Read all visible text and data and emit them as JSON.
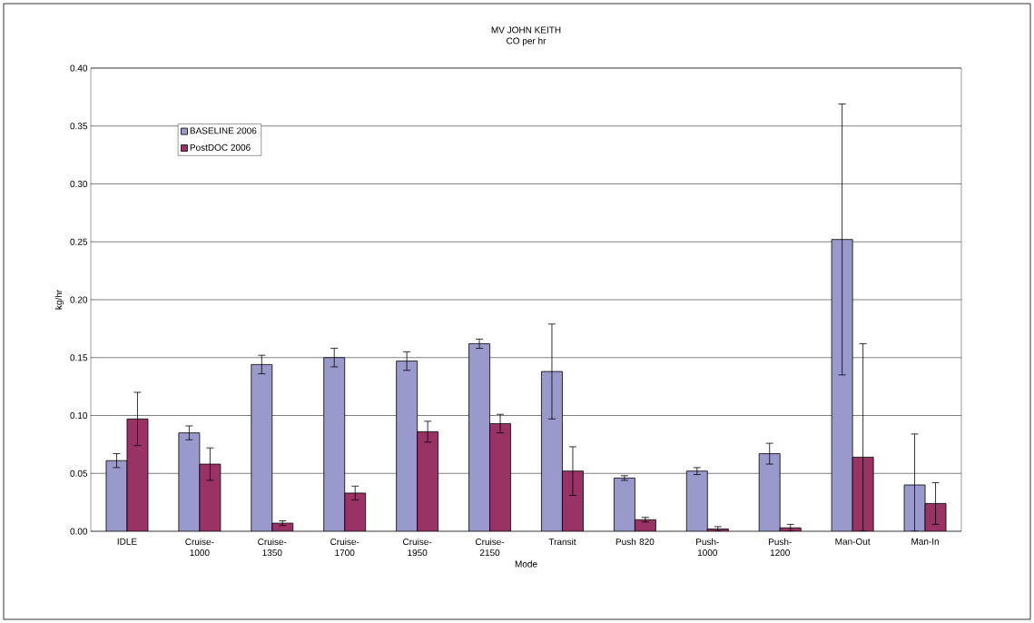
{
  "chart_data": {
    "type": "bar",
    "title": "MV JOHN KEITH",
    "subtitle": "CO per hr",
    "xlabel": "Mode",
    "ylabel": "kg/hr",
    "categories": [
      "IDLE",
      "Cruise-1000",
      "Cruise-1350",
      "Cruise-1700",
      "Cruise-1950",
      "Cruise-2150",
      "Transit",
      "Push 820",
      "Push-1000",
      "Push-1200",
      "Man-Out",
      "Man-In"
    ],
    "series": [
      {
        "name": "BASELINE 2006",
        "color": "#9999cc",
        "values": [
          0.061,
          0.085,
          0.144,
          0.15,
          0.147,
          0.162,
          0.138,
          0.046,
          0.052,
          0.067,
          0.252,
          0.04
        ],
        "errors": [
          0.006,
          0.006,
          0.008,
          0.008,
          0.008,
          0.004,
          0.041,
          0.002,
          0.003,
          0.009,
          0.117,
          [
            0.0,
            0.084
          ]
        ]
      },
      {
        "name": "PostDOC 2006",
        "color": "#993366",
        "values": [
          0.097,
          0.058,
          0.007,
          0.033,
          0.086,
          0.093,
          0.052,
          0.01,
          0.002,
          0.003,
          0.064,
          0.024
        ],
        "errors": [
          0.023,
          0.014,
          0.002,
          0.006,
          0.009,
          0.008,
          0.021,
          0.002,
          0.002,
          0.003,
          [
            0.0,
            0.162
          ],
          0.018
        ]
      }
    ],
    "ylim": [
      0,
      0.4
    ],
    "yticks": [
      {
        "value": 0,
        "label": "0.00"
      },
      0.05,
      {
        "value": 0.1,
        "label": "0.10"
      },
      0.15,
      {
        "value": 0.2,
        "label": "0.20"
      },
      0.25,
      {
        "value": 0.3,
        "label": "0.30"
      },
      0.35,
      {
        "value": 0.4,
        "label": "0.40"
      }
    ],
    "grid": "y",
    "legend": "top left"
  }
}
